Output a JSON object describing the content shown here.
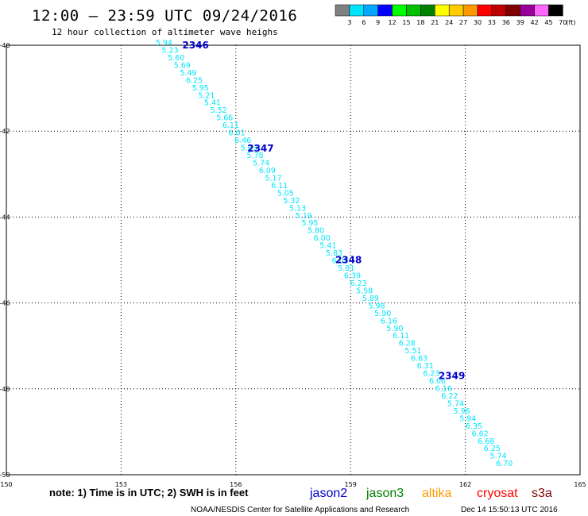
{
  "header": {
    "title": "12:00 – 23:59 UTC 09/24/2016",
    "subtitle": "12 hour collection of altimeter wave heighs"
  },
  "colorbar": {
    "unit": "(ft)",
    "colors": [
      "#808080",
      "#00e5ff",
      "#00a8ff",
      "#0000ff",
      "#00ff00",
      "#00c000",
      "#008000",
      "#ffff00",
      "#ffcc00",
      "#ff9900",
      "#ff0000",
      "#c00000",
      "#800000",
      "#990099",
      "#ff66ff",
      "#000000"
    ],
    "labels": [
      "3",
      "6",
      "9",
      "12",
      "15",
      "18",
      "21",
      "24",
      "27",
      "30",
      "33",
      "36",
      "39",
      "42",
      "45",
      "70"
    ]
  },
  "chart_data": {
    "type": "scatter",
    "xlim": [
      150,
      165
    ],
    "ylim": [
      -50,
      -40
    ],
    "xticks": [
      "150",
      "153",
      "156",
      "159",
      "162",
      "165"
    ],
    "yticks": [
      "-40",
      "-42",
      "-44",
      "-46",
      "-48",
      "-50"
    ],
    "grid": true,
    "series_color": "#00e5ff",
    "pass_color": "#0000cc",
    "passes": [
      {
        "label": "2346",
        "lon": 154.6,
        "lat": -40.0
      },
      {
        "label": "2347",
        "lon": 156.3,
        "lat": -42.4
      },
      {
        "label": "2348",
        "lon": 158.6,
        "lat": -45.0
      },
      {
        "label": "2349",
        "lon": 161.3,
        "lat": -47.7
      }
    ],
    "values": [
      "5.94",
      "5.23",
      "5.60",
      "5.69",
      "5.49",
      "6.25",
      "5.95",
      "5.21",
      "5.41",
      "5.52",
      "5.66",
      "6.11",
      "6.01",
      "6.46",
      "5.63",
      "5.78",
      "5.74",
      "6.09",
      "5.17",
      "6.11",
      "5.05",
      "5.32",
      "5.13",
      "5.19",
      "5.95",
      "5.80",
      "6.00",
      "5.41",
      "5.83",
      "6.02",
      "5.81",
      "6.39",
      "6.23",
      "5.58",
      "5.89",
      "5.98",
      "5.90",
      "6.16",
      "5.90",
      "6.11",
      "6.28",
      "5.51",
      "6.63",
      "6.31",
      "6.23",
      "6.06",
      "6.16",
      "6.22",
      "5.74",
      "5.96",
      "5.94",
      "6.35",
      "6.62",
      "6.68",
      "6.25",
      "5.74",
      "6.70"
    ],
    "track_start": {
      "lon": 153.9,
      "lat": -40.0
    },
    "track_end": {
      "lon": 162.8,
      "lat": -49.8
    }
  },
  "footer": {
    "note": "note:  1) Time is in UTC;  2) SWH is in feet",
    "legend": [
      {
        "name": "jason2",
        "color": "#0000cc"
      },
      {
        "name": "jason3",
        "color": "#008000"
      },
      {
        "name": "altika",
        "color": "#ff9900"
      },
      {
        "name": "cryosat",
        "color": "#ff0000"
      },
      {
        "name": "s3a",
        "color": "#800000"
      }
    ],
    "credit": "NOAA/NESDIS Center for Satellite Applications and Research",
    "timestamp": "Dec 14 15:50:13 UTC 2016"
  }
}
